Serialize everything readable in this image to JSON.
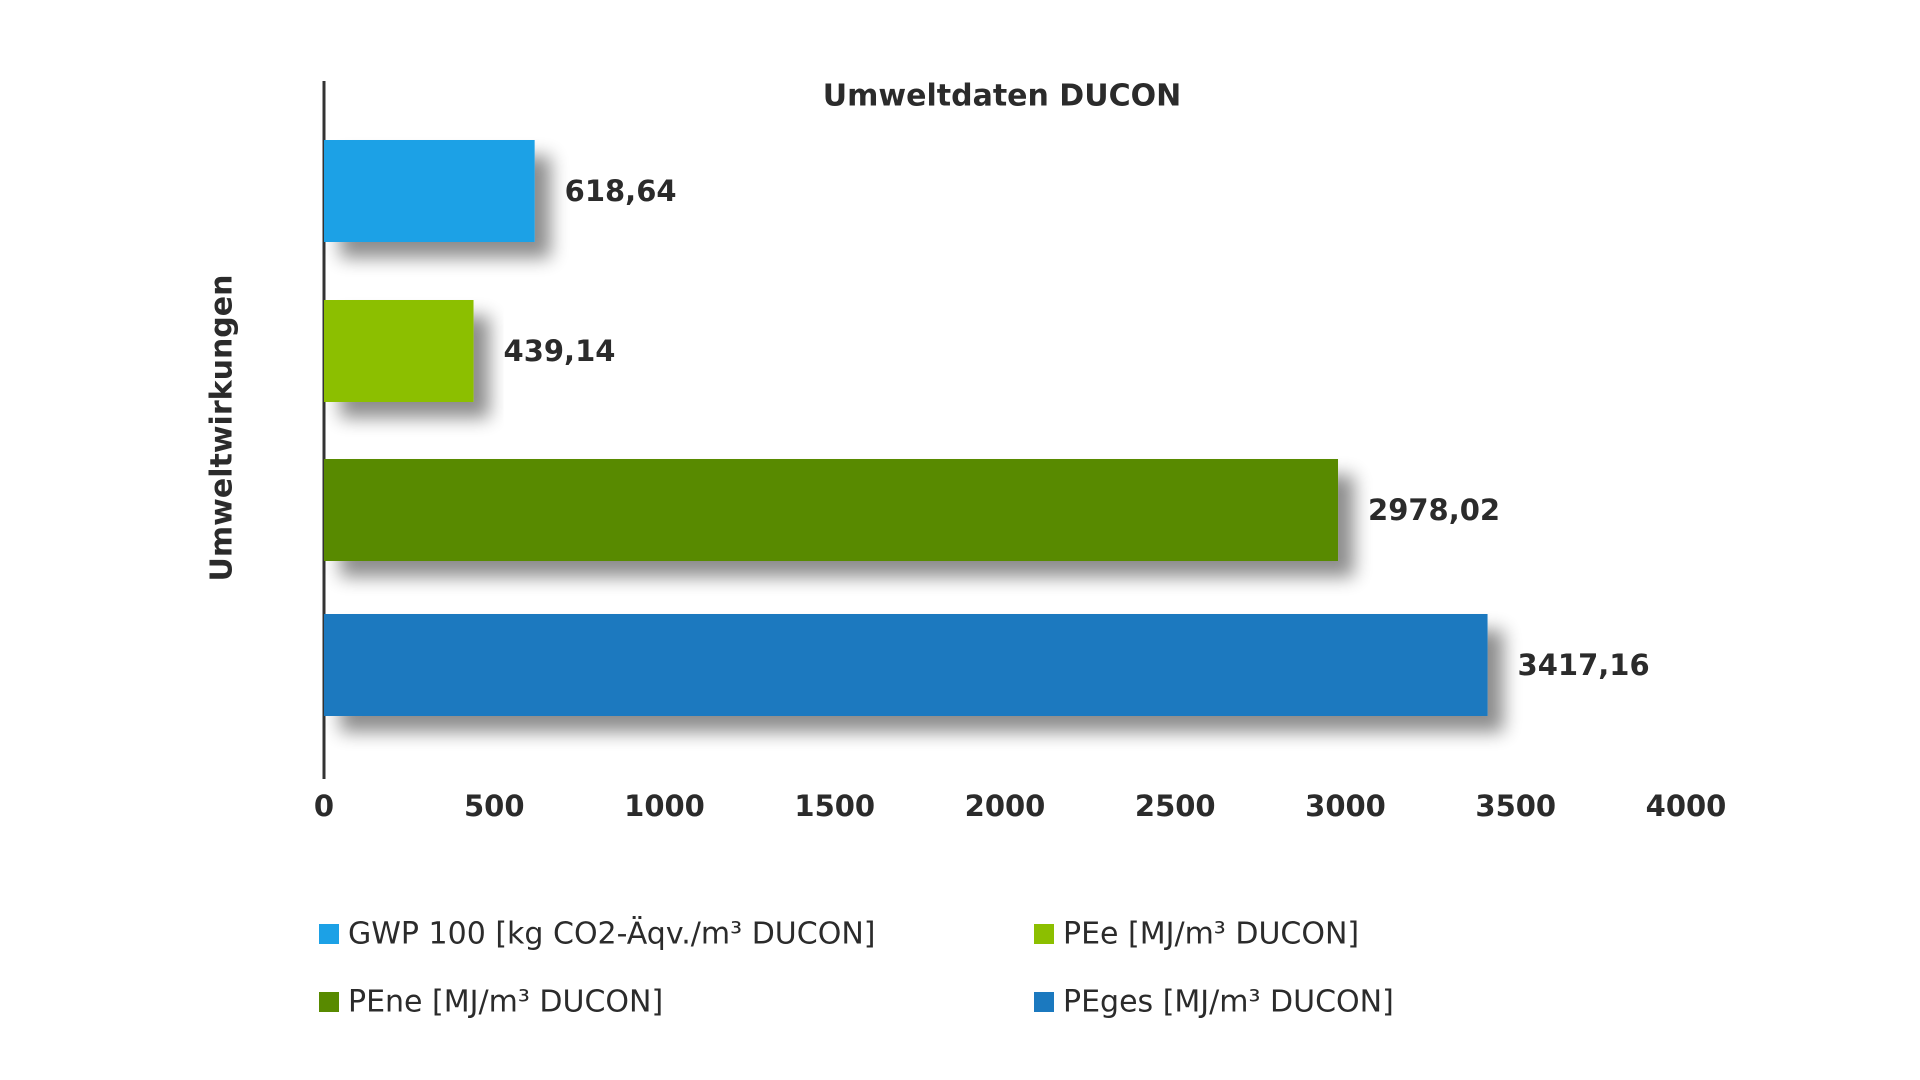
{
  "chart_data": {
    "type": "bar",
    "orientation": "horizontal",
    "title": "Umweltdaten DUCON",
    "ylabel": "Umweltwirkungen",
    "series": [
      {
        "name": "GWP 100 [kg CO2-Äqv./m³ DUCON]",
        "color": "#1ca1e6",
        "values": [
          618.64
        ],
        "value_labels": [
          "618,64"
        ]
      },
      {
        "name": "PEe [MJ/m³ DUCON]",
        "color": "#8cbf00",
        "values": [
          439.14
        ],
        "value_labels": [
          "439,14"
        ]
      },
      {
        "name": "PEne [MJ/m³ DUCON]",
        "color": "#588a00",
        "values": [
          2978.02
        ],
        "value_labels": [
          "2978,02"
        ]
      },
      {
        "name": "PEges [MJ/m³ DUCON]",
        "color": "#1b79bf",
        "values": [
          3417.16
        ],
        "value_labels": [
          "3417,16"
        ]
      }
    ],
    "xlim": [
      0,
      4000
    ],
    "xticks": [
      0,
      500,
      1000,
      1500,
      2000,
      2500,
      3000,
      3500,
      4000
    ],
    "grid": false,
    "legend": "bottom"
  }
}
